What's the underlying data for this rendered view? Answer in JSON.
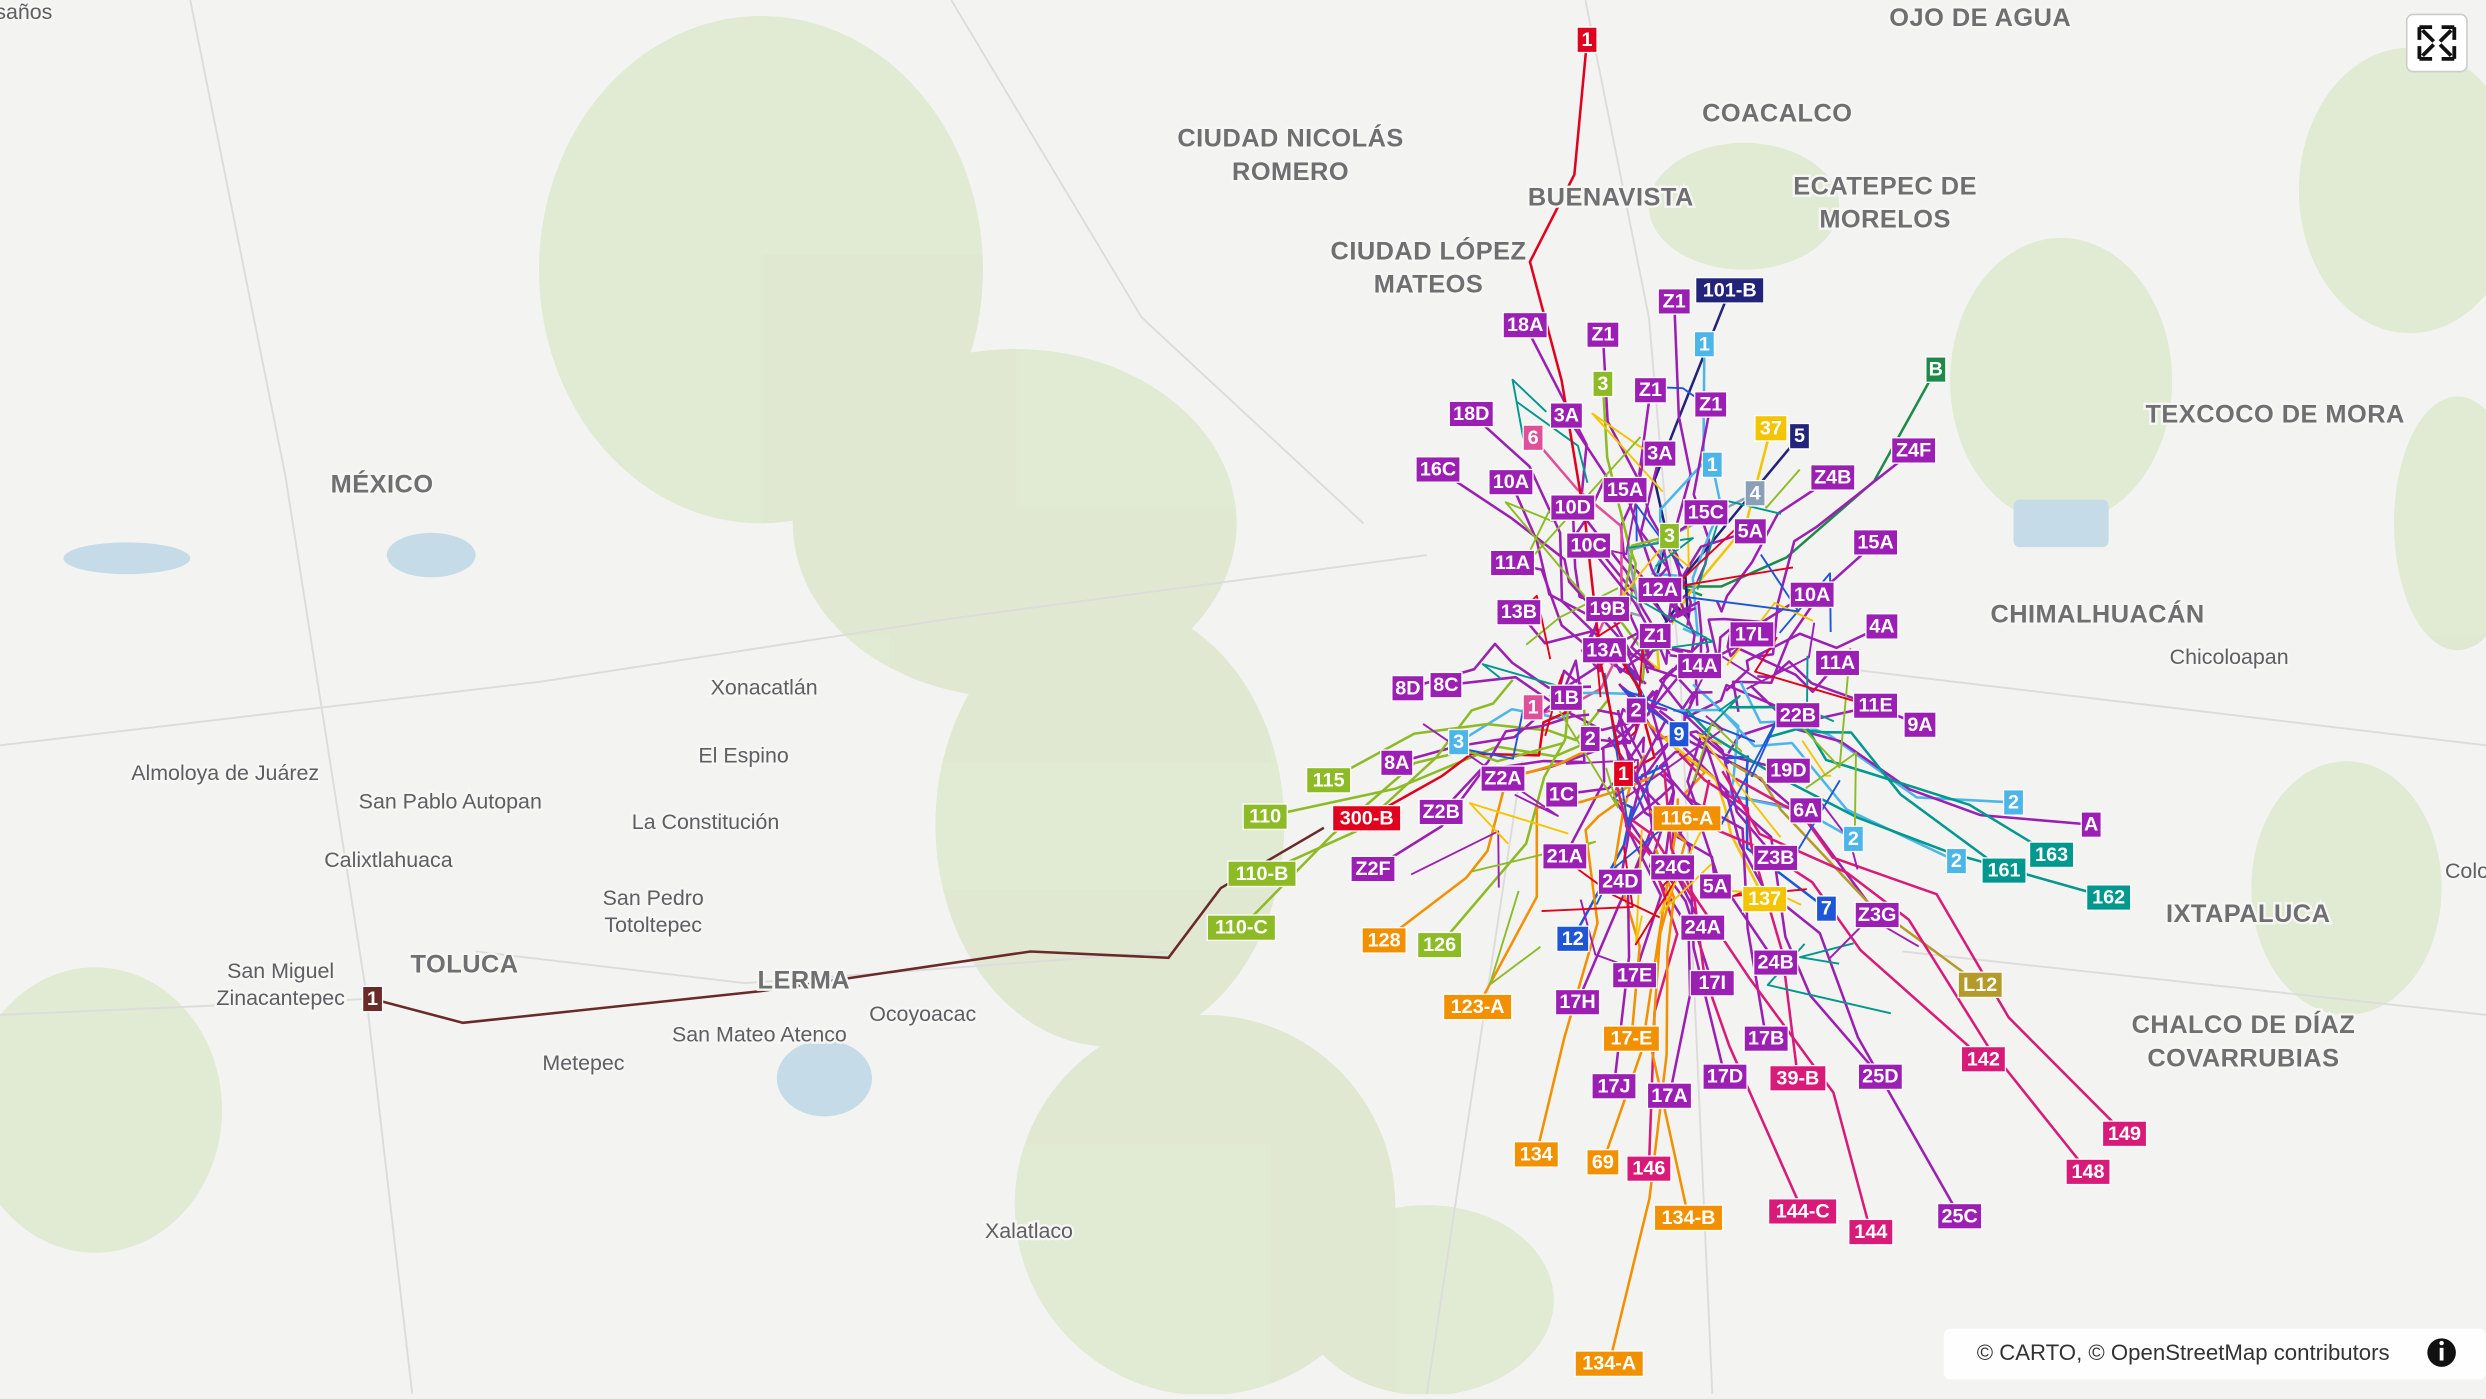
{
  "places": [
    {
      "lines": [
        "OJO DE AGUA"
      ]
    },
    {
      "lines": [
        "COACALCO"
      ]
    },
    {
      "lines": [
        "CIUDAD NICOLÁS",
        "ROMERO"
      ]
    },
    {
      "lines": [
        "BUENAVISTA"
      ]
    },
    {
      "lines": [
        "ECATEPEC DE",
        "MORELOS"
      ]
    },
    {
      "lines": [
        "CIUDAD LÓPEZ",
        "MATEOS"
      ]
    },
    {
      "lines": [
        "TEXCOCO DE MORA"
      ]
    },
    {
      "lines": [
        "MÉXICO"
      ]
    },
    {
      "lines": [
        "CHIMALHUACÁN"
      ]
    },
    {
      "lines": [
        "TOLUCA"
      ]
    },
    {
      "lines": [
        "LERMA"
      ]
    },
    {
      "lines": [
        "IXTAPALUCA"
      ]
    },
    {
      "lines": [
        "CHALCO DE DÍAZ",
        "COVARRUBIAS"
      ]
    }
  ],
  "towns": [
    {
      "lines": [
        "saños"
      ]
    },
    {
      "lines": [
        "Chicoloapan"
      ]
    },
    {
      "lines": [
        "Xonacatlán"
      ]
    },
    {
      "lines": [
        "El Espino"
      ]
    },
    {
      "lines": [
        "Almoloya de Juárez"
      ]
    },
    {
      "lines": [
        "San Pablo Autopan"
      ]
    },
    {
      "lines": [
        "La Constitución"
      ]
    },
    {
      "lines": [
        "Calixtlahuaca"
      ]
    },
    {
      "lines": [
        "San Pedro",
        "Totoltepec"
      ]
    },
    {
      "lines": [
        "San Miguel",
        "Zinacantepec"
      ]
    },
    {
      "lines": [
        "Ocoyoacac"
      ]
    },
    {
      "lines": [
        "San Mateo Atenco"
      ]
    },
    {
      "lines": [
        "Metepec"
      ]
    },
    {
      "lines": [
        "Xalatlaco"
      ]
    },
    {
      "lines": [
        "Colo"
      ]
    }
  ],
  "routes": [
    {
      "label": "1",
      "color": "#e1001e"
    },
    {
      "label": "101-B",
      "color": "#23237a"
    },
    {
      "label": "Z1",
      "color": "#9c1fb3"
    },
    {
      "label": "18A",
      "color": "#9c1fb3"
    },
    {
      "label": "Z1",
      "color": "#9c1fb3"
    },
    {
      "label": "1",
      "color": "#4db6e8"
    },
    {
      "label": "3",
      "color": "#8dbb25"
    },
    {
      "label": "Z1",
      "color": "#9c1fb3"
    },
    {
      "label": "Z1",
      "color": "#9c1fb3"
    },
    {
      "label": "B",
      "color": "#1d8a4a"
    },
    {
      "label": "18D",
      "color": "#9c1fb3"
    },
    {
      "label": "3A",
      "color": "#9c1fb3"
    },
    {
      "label": "6",
      "color": "#e0509a"
    },
    {
      "label": "37",
      "color": "#f5c400"
    },
    {
      "label": "5",
      "color": "#23237a"
    },
    {
      "label": "Z4F",
      "color": "#9c1fb3"
    },
    {
      "label": "3A",
      "color": "#9c1fb3"
    },
    {
      "label": "16C",
      "color": "#9c1fb3"
    },
    {
      "label": "1",
      "color": "#4db6e8"
    },
    {
      "label": "Z4B",
      "color": "#9c1fb3"
    },
    {
      "label": "10A",
      "color": "#9c1fb3"
    },
    {
      "label": "15A",
      "color": "#9c1fb3"
    },
    {
      "label": "4",
      "color": "#8aa0b8"
    },
    {
      "label": "10D",
      "color": "#9c1fb3"
    },
    {
      "label": "15C",
      "color": "#9c1fb3"
    },
    {
      "label": "5A",
      "color": "#9c1fb3"
    },
    {
      "label": "3",
      "color": "#8dbb25"
    },
    {
      "label": "10C",
      "color": "#9c1fb3"
    },
    {
      "label": "15A",
      "color": "#9c1fb3"
    },
    {
      "label": "11A",
      "color": "#9c1fb3"
    },
    {
      "label": "12A",
      "color": "#9c1fb3"
    },
    {
      "label": "10A",
      "color": "#9c1fb3"
    },
    {
      "label": "13B",
      "color": "#9c1fb3"
    },
    {
      "label": "19B",
      "color": "#9c1fb3"
    },
    {
      "label": "4A",
      "color": "#9c1fb3"
    },
    {
      "label": "Z1",
      "color": "#9c1fb3"
    },
    {
      "label": "17L",
      "color": "#9c1fb3"
    },
    {
      "label": "13A",
      "color": "#9c1fb3"
    },
    {
      "label": "14A",
      "color": "#9c1fb3"
    },
    {
      "label": "11A",
      "color": "#9c1fb3"
    },
    {
      "label": "8D",
      "color": "#9c1fb3"
    },
    {
      "label": "8C",
      "color": "#9c1fb3"
    },
    {
      "label": "1",
      "color": "#e0509a"
    },
    {
      "label": "1B",
      "color": "#9c1fb3"
    },
    {
      "label": "2",
      "color": "#9c1fb3"
    },
    {
      "label": "22B",
      "color": "#9c1fb3"
    },
    {
      "label": "11E",
      "color": "#9c1fb3"
    },
    {
      "label": "9A",
      "color": "#9c1fb3"
    },
    {
      "label": "9",
      "color": "#1f56d6"
    },
    {
      "label": "2",
      "color": "#9c1fb3"
    },
    {
      "label": "3",
      "color": "#4db6e8"
    },
    {
      "label": "8A",
      "color": "#9c1fb3"
    },
    {
      "label": "1",
      "color": "#e1001e"
    },
    {
      "label": "19D",
      "color": "#9c1fb3"
    },
    {
      "label": "115",
      "color": "#8dbb25"
    },
    {
      "label": "Z2A",
      "color": "#9c1fb3"
    },
    {
      "label": "1C",
      "color": "#9c1fb3"
    },
    {
      "label": "2",
      "color": "#4db6e8"
    },
    {
      "label": "A",
      "color": "#9c1fb3"
    },
    {
      "label": "110",
      "color": "#8dbb25"
    },
    {
      "label": "300-B",
      "color": "#e1001e"
    },
    {
      "label": "Z2B",
      "color": "#9c1fb3"
    },
    {
      "label": "116-A",
      "color": "#f29100"
    },
    {
      "label": "6A",
      "color": "#9c1fb3"
    },
    {
      "label": "2",
      "color": "#4db6e8"
    },
    {
      "label": "163",
      "color": "#00978f"
    },
    {
      "label": "21A",
      "color": "#9c1fb3"
    },
    {
      "label": "24C",
      "color": "#9c1fb3"
    },
    {
      "label": "Z3B",
      "color": "#9c1fb3"
    },
    {
      "label": "2",
      "color": "#4db6e8"
    },
    {
      "label": "161",
      "color": "#00978f"
    },
    {
      "label": "110-B",
      "color": "#8dbb25"
    },
    {
      "label": "Z2F",
      "color": "#9c1fb3"
    },
    {
      "label": "24D",
      "color": "#9c1fb3"
    },
    {
      "label": "5A",
      "color": "#9c1fb3"
    },
    {
      "label": "137",
      "color": "#f5c400"
    },
    {
      "label": "7",
      "color": "#1f56d6"
    },
    {
      "label": "162",
      "color": "#00978f"
    },
    {
      "label": "Z3G",
      "color": "#9c1fb3"
    },
    {
      "label": "110-C",
      "color": "#8dbb25"
    },
    {
      "label": "24A",
      "color": "#9c1fb3"
    },
    {
      "label": "128",
      "color": "#f29100"
    },
    {
      "label": "126",
      "color": "#8dbb25"
    },
    {
      "label": "12",
      "color": "#1f56d6"
    },
    {
      "label": "24B",
      "color": "#9c1fb3"
    },
    {
      "label": "17E",
      "color": "#9c1fb3"
    },
    {
      "label": "17I",
      "color": "#9c1fb3"
    },
    {
      "label": "L12",
      "color": "#b39a2a"
    },
    {
      "label": "1",
      "color": "#6b2a2a"
    },
    {
      "label": "17H",
      "color": "#9c1fb3"
    },
    {
      "label": "123-A",
      "color": "#f29100"
    },
    {
      "label": "17-E",
      "color": "#f29100"
    },
    {
      "label": "17B",
      "color": "#9c1fb3"
    },
    {
      "label": "142",
      "color": "#d81b79"
    },
    {
      "label": "17D",
      "color": "#9c1fb3"
    },
    {
      "label": "39-B",
      "color": "#d81b79"
    },
    {
      "label": "25D",
      "color": "#9c1fb3"
    },
    {
      "label": "17J",
      "color": "#9c1fb3"
    },
    {
      "label": "17A",
      "color": "#9c1fb3"
    },
    {
      "label": "149",
      "color": "#d81b79"
    },
    {
      "label": "134",
      "color": "#f29100"
    },
    {
      "label": "69",
      "color": "#f29100"
    },
    {
      "label": "146",
      "color": "#d81b79"
    },
    {
      "label": "148",
      "color": "#d81b79"
    },
    {
      "label": "144-C",
      "color": "#d81b79"
    },
    {
      "label": "134-B",
      "color": "#f29100"
    },
    {
      "label": "25C",
      "color": "#9c1fb3"
    },
    {
      "label": "144",
      "color": "#d81b79"
    },
    {
      "label": "134-A",
      "color": "#f29100"
    }
  ],
  "attribution": "© CARTO, © OpenStreetMap contributors"
}
